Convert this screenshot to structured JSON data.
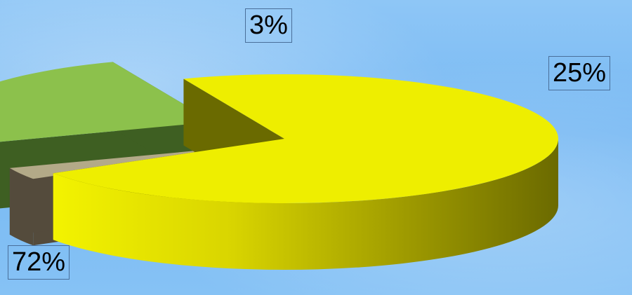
{
  "chart_data": {
    "type": "pie",
    "categories": [
      "72%",
      "3%",
      "25%"
    ],
    "values": [
      72,
      3,
      25
    ],
    "labels": [
      "72%",
      "3%",
      "25%"
    ],
    "colors": [
      "#eeee00",
      "#b3aa88",
      "#8cc14c"
    ],
    "side_colors": [
      "#6a6a00",
      "#544b3c",
      "#3e5f22"
    ],
    "style": "3d exploded pie"
  }
}
